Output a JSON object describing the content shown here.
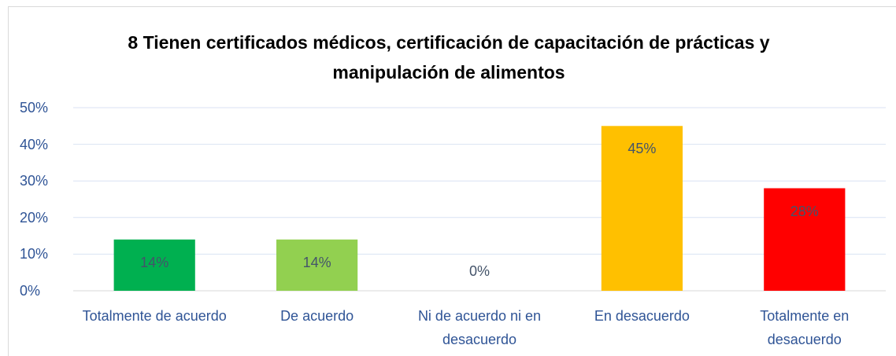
{
  "chart_data": {
    "type": "bar",
    "title": "8 Tienen certificados médicos, certificación de capacitación de prácticas y manipulación de alimentos",
    "categories": [
      "Totalmente de acuerdo",
      "De acuerdo",
      "Ni de acuerdo ni en desacuerdo",
      "En desacuerdo",
      "Totalmente en desacuerdo"
    ],
    "values": [
      14,
      14,
      0,
      45,
      28
    ],
    "value_labels": [
      "14%",
      "14%",
      "0%",
      "45%",
      "28%"
    ],
    "colors": [
      "#00b050",
      "#92d050",
      "#a5a5a5",
      "#ffc000",
      "#ff0000"
    ],
    "ylim": [
      0,
      50
    ],
    "yticks": [
      {
        "value": 0,
        "label": "0%"
      },
      {
        "value": 10,
        "label": "10%"
      },
      {
        "value": 20,
        "label": "20%"
      },
      {
        "value": 30,
        "label": "30%"
      },
      {
        "value": 40,
        "label": "40%"
      },
      {
        "value": 50,
        "label": "50%"
      }
    ],
    "grid": true
  }
}
